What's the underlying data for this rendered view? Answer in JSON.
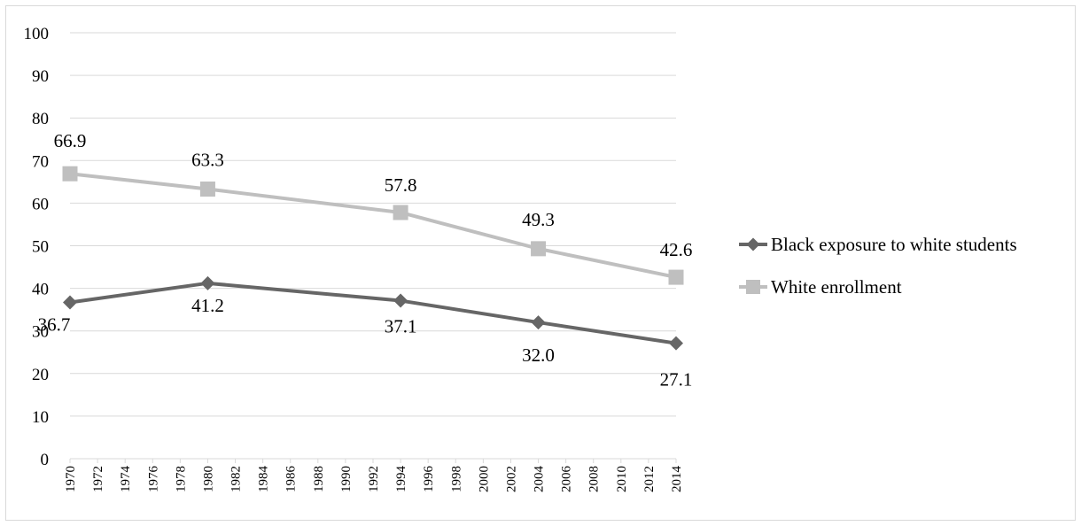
{
  "chart_data": {
    "type": "line",
    "title": "",
    "xlabel": "",
    "ylabel": "",
    "ylim": [
      0,
      100
    ],
    "yticks": [
      0,
      10,
      20,
      30,
      40,
      50,
      60,
      70,
      80,
      90,
      100
    ],
    "xlim": [
      1970,
      2014
    ],
    "xticks": [
      "1970",
      "1972",
      "1974",
      "1976",
      "1978",
      "1980",
      "1982",
      "1984",
      "1986",
      "1988",
      "1990",
      "1992",
      "1994",
      "1996",
      "1998",
      "2000",
      "2002",
      "2004",
      "2006",
      "2008",
      "2010",
      "2012",
      "2014"
    ],
    "grid": true,
    "legend_position": "right",
    "series": [
      {
        "name": "Black exposure to white students",
        "color": "#666666",
        "marker": "diamond",
        "x": [
          1970,
          1980,
          1994,
          2004,
          2014
        ],
        "values": [
          36.7,
          41.2,
          37.1,
          32.0,
          27.1
        ],
        "labels": [
          "36.7",
          "41.2",
          "37.1",
          "32.0",
          "27.1"
        ]
      },
      {
        "name": "White enrollment",
        "color": "#bfbfbf",
        "marker": "square",
        "x": [
          1970,
          1980,
          1994,
          2004,
          2014
        ],
        "values": [
          66.9,
          63.3,
          57.8,
          49.3,
          42.6
        ],
        "labels": [
          "66.9",
          "63.3",
          "57.8",
          "49.3",
          "42.6"
        ]
      }
    ]
  }
}
